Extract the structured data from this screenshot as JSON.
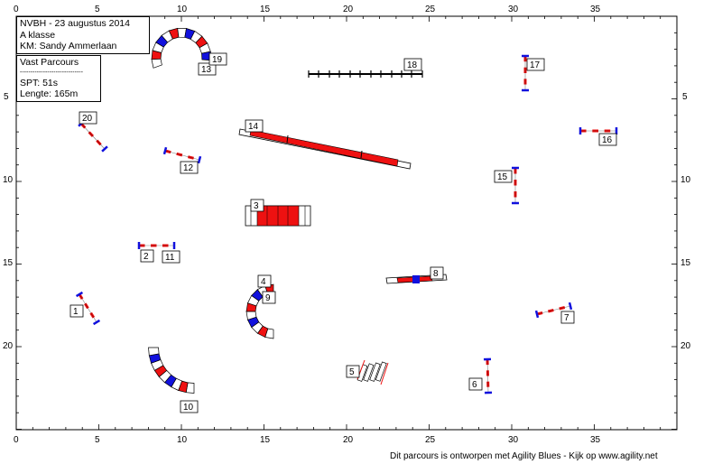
{
  "header": {
    "title": "NVBH - 23 augustus 2014",
    "class": "A klasse",
    "judge": "KM: Sandy Ammerlaan"
  },
  "course_info": {
    "name": "Vast Parcours",
    "separator": "------------------------------",
    "spt": "SPT:  51s",
    "length": "Lengte: 165m"
  },
  "footer": "Dit parcours is ontworpen met Agility Blues - Kijk op www.agility.net",
  "axes": {
    "x_ticks": [
      "0",
      "5",
      "10",
      "15",
      "20",
      "25",
      "30",
      "35"
    ],
    "y_ticks": [
      "5",
      "10",
      "15",
      "20"
    ]
  },
  "obstacle_numbers": [
    "1",
    "2",
    "3",
    "4",
    "5",
    "6",
    "7",
    "8",
    "9",
    "10",
    "11",
    "12",
    "13",
    "14",
    "15",
    "16",
    "17",
    "18",
    "19",
    "20"
  ],
  "colors": {
    "red": "#ee1111",
    "blue": "#1111dd",
    "border": "#000000"
  }
}
